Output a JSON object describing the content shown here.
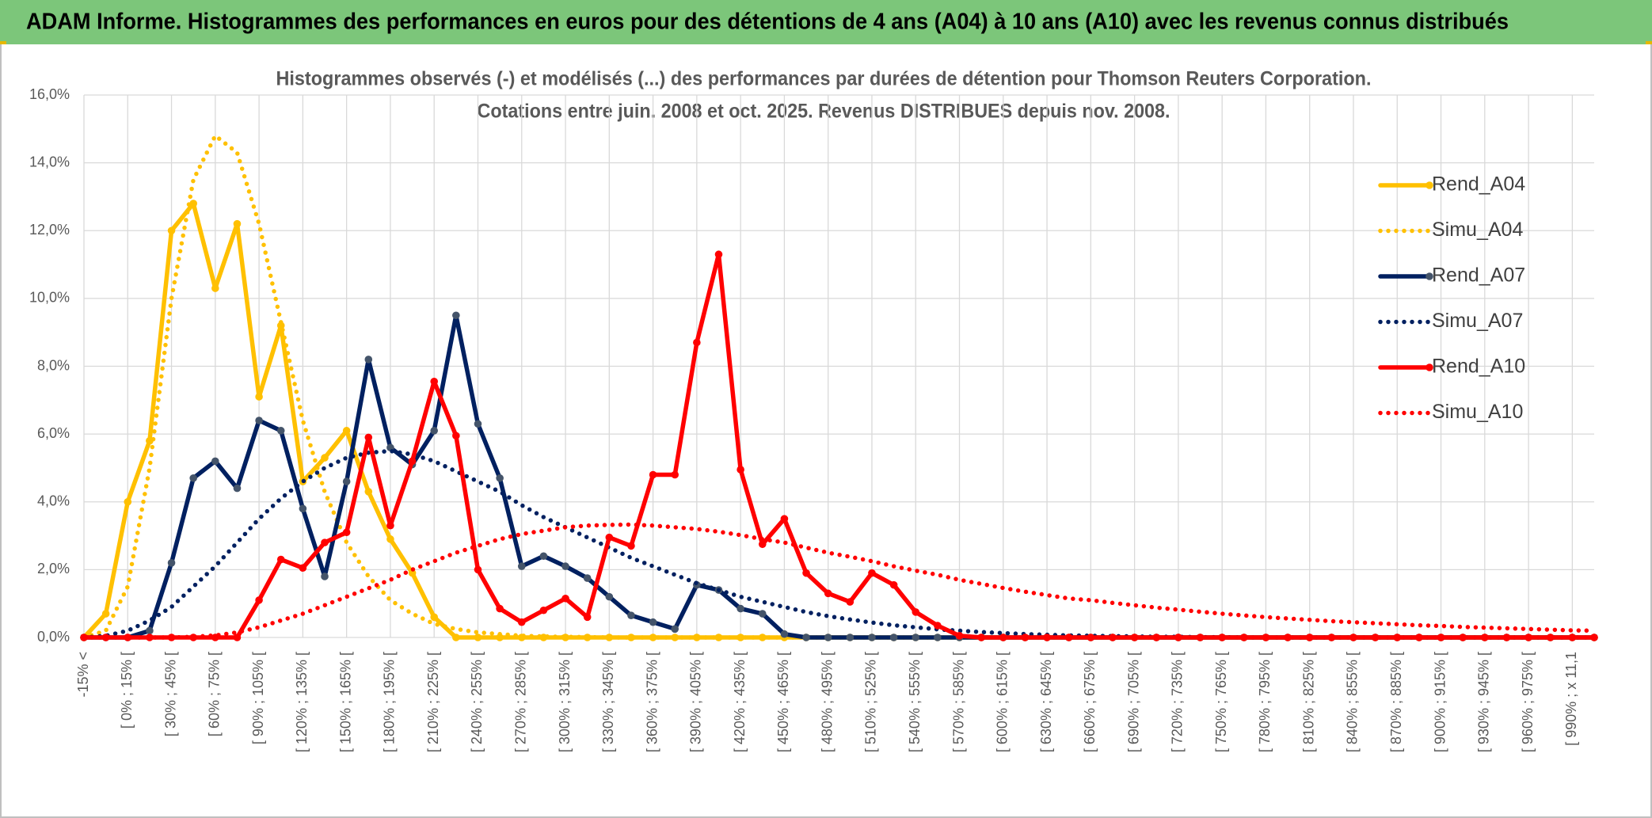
{
  "header": {
    "title": "ADAM Informe. Histogrammes des performances en euros pour des détentions de 4 ans (A04) à 10 ans (A10) avec les revenus connus distribués"
  },
  "chart_data": {
    "type": "line",
    "title": [
      "Histogrammes observés (-) et modélisés (...) des performances par durées de détention pour Thomson Reuters Corporation.",
      "Cotations entre juin. 2008 et oct. 2025. Revenus DISTRIBUES depuis nov. 2008."
    ],
    "categories": [
      "-15% <",
      null,
      "[ 0% ; 15% [",
      null,
      "[ 30% ; 45% [",
      null,
      "[ 60% ; 75% [",
      null,
      "[ 90% ; 105% [",
      null,
      "[ 120% ; 135% [",
      null,
      "[ 150% ; 165% [",
      null,
      "[ 180% ; 195% [",
      null,
      "[ 210% ; 225% [",
      null,
      "[ 240% ; 255% [",
      null,
      "[ 270% ; 285% [",
      null,
      "[ 300% ; 315% [",
      null,
      "[ 330% ; 345% [",
      null,
      "[ 360% ; 375% [",
      null,
      "[ 390% ; 405% [",
      null,
      "[ 420% ; 435% [",
      null,
      "[ 450% ; 465% [",
      null,
      "[ 480% ; 495% [",
      null,
      "[ 510% ; 525% [",
      null,
      "[ 540% ; 555% [",
      null,
      "[ 570% ; 585% [",
      null,
      "[ 600% ; 615% [",
      null,
      "[ 630% ; 645% [",
      null,
      "[ 660% ; 675% [",
      null,
      "[ 690% ; 705% [",
      null,
      "[ 720% ; 735% [",
      null,
      "[ 750% ; 765% [",
      null,
      "[ 780% ; 795% [",
      null,
      "[ 810% ; 825% [",
      null,
      "[ 840% ; 855% [",
      null,
      "[ 870% ; 885% [",
      null,
      "[ 900% ; 915% [",
      null,
      "[ 930% ; 945% [",
      null,
      "[ 960% ; 975% [",
      null,
      "[ 990% ; x 11,1",
      null
    ],
    "ylim": [
      0,
      16
    ],
    "yticks": [
      {
        "value": 0,
        "label": "0,0%"
      },
      {
        "value": 2,
        "label": "2,0%"
      },
      {
        "value": 4,
        "label": "4,0%"
      },
      {
        "value": 6,
        "label": "6,0%"
      },
      {
        "value": 8,
        "label": "8,0%"
      },
      {
        "value": 10,
        "label": "10,0%"
      },
      {
        "value": 12,
        "label": "12,0%"
      },
      {
        "value": 14,
        "label": "14,0%"
      },
      {
        "value": 16,
        "label": "16,0%"
      }
    ],
    "grid": true,
    "legend": "right",
    "series": [
      {
        "name": "Rend_A04",
        "color": "#ffc000",
        "marker_color": "#ffc000",
        "line_style": "solid",
        "markers": true,
        "values": [
          0,
          0.7,
          4.0,
          5.8,
          12.0,
          12.8,
          10.3,
          12.2,
          7.1,
          9.2,
          4.6,
          5.3,
          6.1,
          4.3,
          2.9,
          1.9,
          0.6,
          0,
          0,
          0,
          0,
          0,
          0,
          0,
          0,
          0,
          0,
          0,
          0,
          0,
          0,
          0,
          0,
          0,
          0,
          0,
          0,
          0,
          0,
          0,
          0,
          0,
          0,
          0,
          0,
          0,
          0,
          0,
          0,
          0,
          0,
          0,
          0,
          0,
          0,
          0,
          0,
          0,
          0,
          0,
          0,
          0,
          0,
          0,
          0,
          0,
          0,
          0,
          0,
          0
        ]
      },
      {
        "name": "Simu_A04",
        "color": "#ffc000",
        "line_style": "dotted",
        "markers": false,
        "values": [
          0,
          0.2,
          1.5,
          5.0,
          10.0,
          13.5,
          14.8,
          14.3,
          12.2,
          9.3,
          6.4,
          4.3,
          2.8,
          1.8,
          1.1,
          0.7,
          0.4,
          0.25,
          0.15,
          0.1,
          0.05,
          0.03,
          0.02,
          0.01,
          0,
          0,
          0,
          0,
          0,
          0,
          0,
          0,
          0,
          0,
          0,
          0,
          0,
          0,
          0,
          0,
          0,
          0,
          0,
          0,
          0,
          0,
          0,
          0,
          0,
          0,
          0,
          0,
          0,
          0,
          0,
          0,
          0,
          0,
          0,
          0,
          0,
          0,
          0,
          0,
          0,
          0,
          0,
          0,
          0,
          0
        ]
      },
      {
        "name": "Rend_A07",
        "color": "#002060",
        "marker_color": "#44546a",
        "line_style": "solid",
        "markers": true,
        "values": [
          0,
          0,
          0,
          0.2,
          2.2,
          4.7,
          5.2,
          4.4,
          6.4,
          6.1,
          3.8,
          1.8,
          4.6,
          8.2,
          5.6,
          5.1,
          6.1,
          9.5,
          6.3,
          4.7,
          2.1,
          2.4,
          2.1,
          1.75,
          1.2,
          0.65,
          0.45,
          0.25,
          1.55,
          1.4,
          0.85,
          0.7,
          0.1,
          0,
          0,
          0,
          0,
          0,
          0,
          0,
          0,
          0,
          0,
          0,
          0,
          0,
          0,
          0,
          0,
          0,
          0,
          0,
          0,
          0,
          0,
          0,
          0,
          0,
          0,
          0,
          0,
          0,
          0,
          0,
          0,
          0,
          0,
          0,
          0,
          0
        ]
      },
      {
        "name": "Simu_A07",
        "color": "#002060",
        "line_style": "dotted",
        "markers": false,
        "values": [
          0,
          0.05,
          0.2,
          0.5,
          0.9,
          1.5,
          2.1,
          2.8,
          3.5,
          4.1,
          4.6,
          5.0,
          5.3,
          5.45,
          5.5,
          5.4,
          5.2,
          4.9,
          4.6,
          4.3,
          3.9,
          3.55,
          3.25,
          2.95,
          2.65,
          2.35,
          2.1,
          1.85,
          1.6,
          1.4,
          1.2,
          1.05,
          0.9,
          0.75,
          0.63,
          0.53,
          0.44,
          0.36,
          0.3,
          0.24,
          0.2,
          0.16,
          0.13,
          0.1,
          0.08,
          0.06,
          0.05,
          0.04,
          0.03,
          0.02,
          0.02,
          0.01,
          0.01,
          0,
          0,
          0,
          0,
          0,
          0,
          0,
          0,
          0,
          0,
          0,
          0,
          0,
          0,
          0,
          0,
          0
        ]
      },
      {
        "name": "Rend_A10",
        "color": "#ff0000",
        "marker_color": "#ff0000",
        "line_style": "solid",
        "markers": true,
        "values": [
          0,
          0,
          0,
          0,
          0,
          0,
          0,
          0,
          1.1,
          2.3,
          2.05,
          2.8,
          3.1,
          5.9,
          3.3,
          5.2,
          7.55,
          5.95,
          2.0,
          0.85,
          0.45,
          0.8,
          1.15,
          0.6,
          2.95,
          2.7,
          4.8,
          4.8,
          8.7,
          11.3,
          4.95,
          2.75,
          3.5,
          1.9,
          1.3,
          1.05,
          1.9,
          1.55,
          0.75,
          0.35,
          0.05,
          0,
          0,
          0,
          0,
          0,
          0,
          0,
          0,
          0,
          0,
          0,
          0,
          0,
          0,
          0,
          0,
          0,
          0,
          0,
          0,
          0,
          0,
          0,
          0,
          0,
          0,
          0,
          0,
          0
        ]
      },
      {
        "name": "Simu_A10",
        "color": "#ff0000",
        "line_style": "dotted",
        "markers": false,
        "values": [
          0,
          0,
          0,
          0,
          0,
          0.02,
          0.06,
          0.15,
          0.3,
          0.5,
          0.7,
          0.95,
          1.2,
          1.45,
          1.7,
          2.0,
          2.25,
          2.5,
          2.7,
          2.9,
          3.05,
          3.15,
          3.25,
          3.3,
          3.32,
          3.33,
          3.3,
          3.25,
          3.2,
          3.12,
          3.02,
          2.9,
          2.8,
          2.65,
          2.5,
          2.38,
          2.25,
          2.1,
          1.97,
          1.85,
          1.7,
          1.58,
          1.46,
          1.35,
          1.25,
          1.15,
          1.1,
          1.02,
          0.95,
          0.88,
          0.82,
          0.76,
          0.7,
          0.65,
          0.6,
          0.56,
          0.52,
          0.48,
          0.45,
          0.42,
          0.39,
          0.36,
          0.34,
          0.31,
          0.29,
          0.27,
          0.25,
          0.23,
          0.21,
          0.2
        ]
      }
    ]
  }
}
